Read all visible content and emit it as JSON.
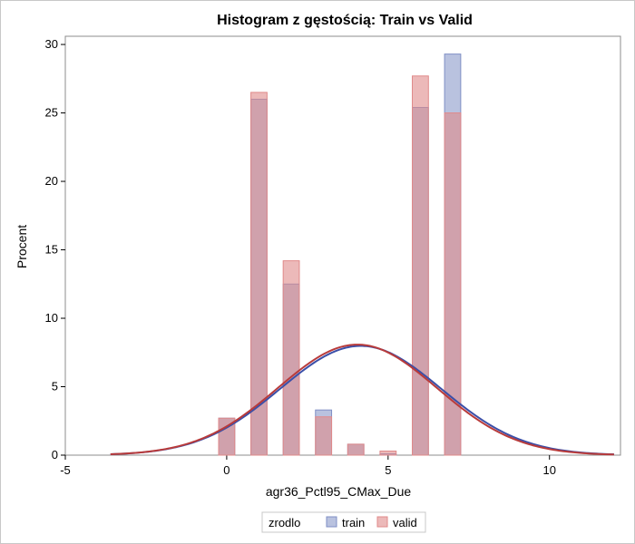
{
  "chart_data": {
    "type": "bar",
    "title": "Histogram z gęstością: Train vs Valid",
    "xlabel": "agr36_Pctl95_CMax_Due",
    "ylabel": "Procent",
    "xlim": [
      -5,
      12.2
    ],
    "ylim": [
      0,
      30.6
    ],
    "xticks": [
      -5,
      0,
      5,
      10
    ],
    "yticks": [
      0,
      5,
      10,
      15,
      20,
      25,
      30
    ],
    "bin_width": 0.5,
    "grid": false,
    "legend": {
      "placement": "bottom",
      "title": "zrodlo",
      "entries": [
        "train",
        "valid"
      ]
    },
    "series": [
      {
        "name": "train",
        "color": "#7f8fc5",
        "fill_opacity": 0.55,
        "curve_color": "#3b4fa8",
        "bins": [
          {
            "x": 0,
            "y": 2.7
          },
          {
            "x": 1,
            "y": 26.0
          },
          {
            "x": 2,
            "y": 12.5
          },
          {
            "x": 3,
            "y": 3.3
          },
          {
            "x": 4,
            "y": 0.8
          },
          {
            "x": 5,
            "y": 0.1
          },
          {
            "x": 6,
            "y": 25.4
          },
          {
            "x": 7,
            "y": 29.3
          }
        ],
        "density": {
          "mean": 4.15,
          "sd": 2.5
        }
      },
      {
        "name": "valid",
        "color": "#e08a8a",
        "fill_opacity": 0.6,
        "curve_color": "#b83b3b",
        "bins": [
          {
            "x": 0,
            "y": 2.7
          },
          {
            "x": 1,
            "y": 26.5
          },
          {
            "x": 2,
            "y": 14.2
          },
          {
            "x": 3,
            "y": 2.8
          },
          {
            "x": 4,
            "y": 0.8
          },
          {
            "x": 5,
            "y": 0.3
          },
          {
            "x": 6,
            "y": 27.7
          },
          {
            "x": 7,
            "y": 25.0
          }
        ],
        "density": {
          "mean": 4.05,
          "sd": 2.47
        }
      }
    ],
    "density_range": [
      -3.6,
      12.0
    ]
  }
}
